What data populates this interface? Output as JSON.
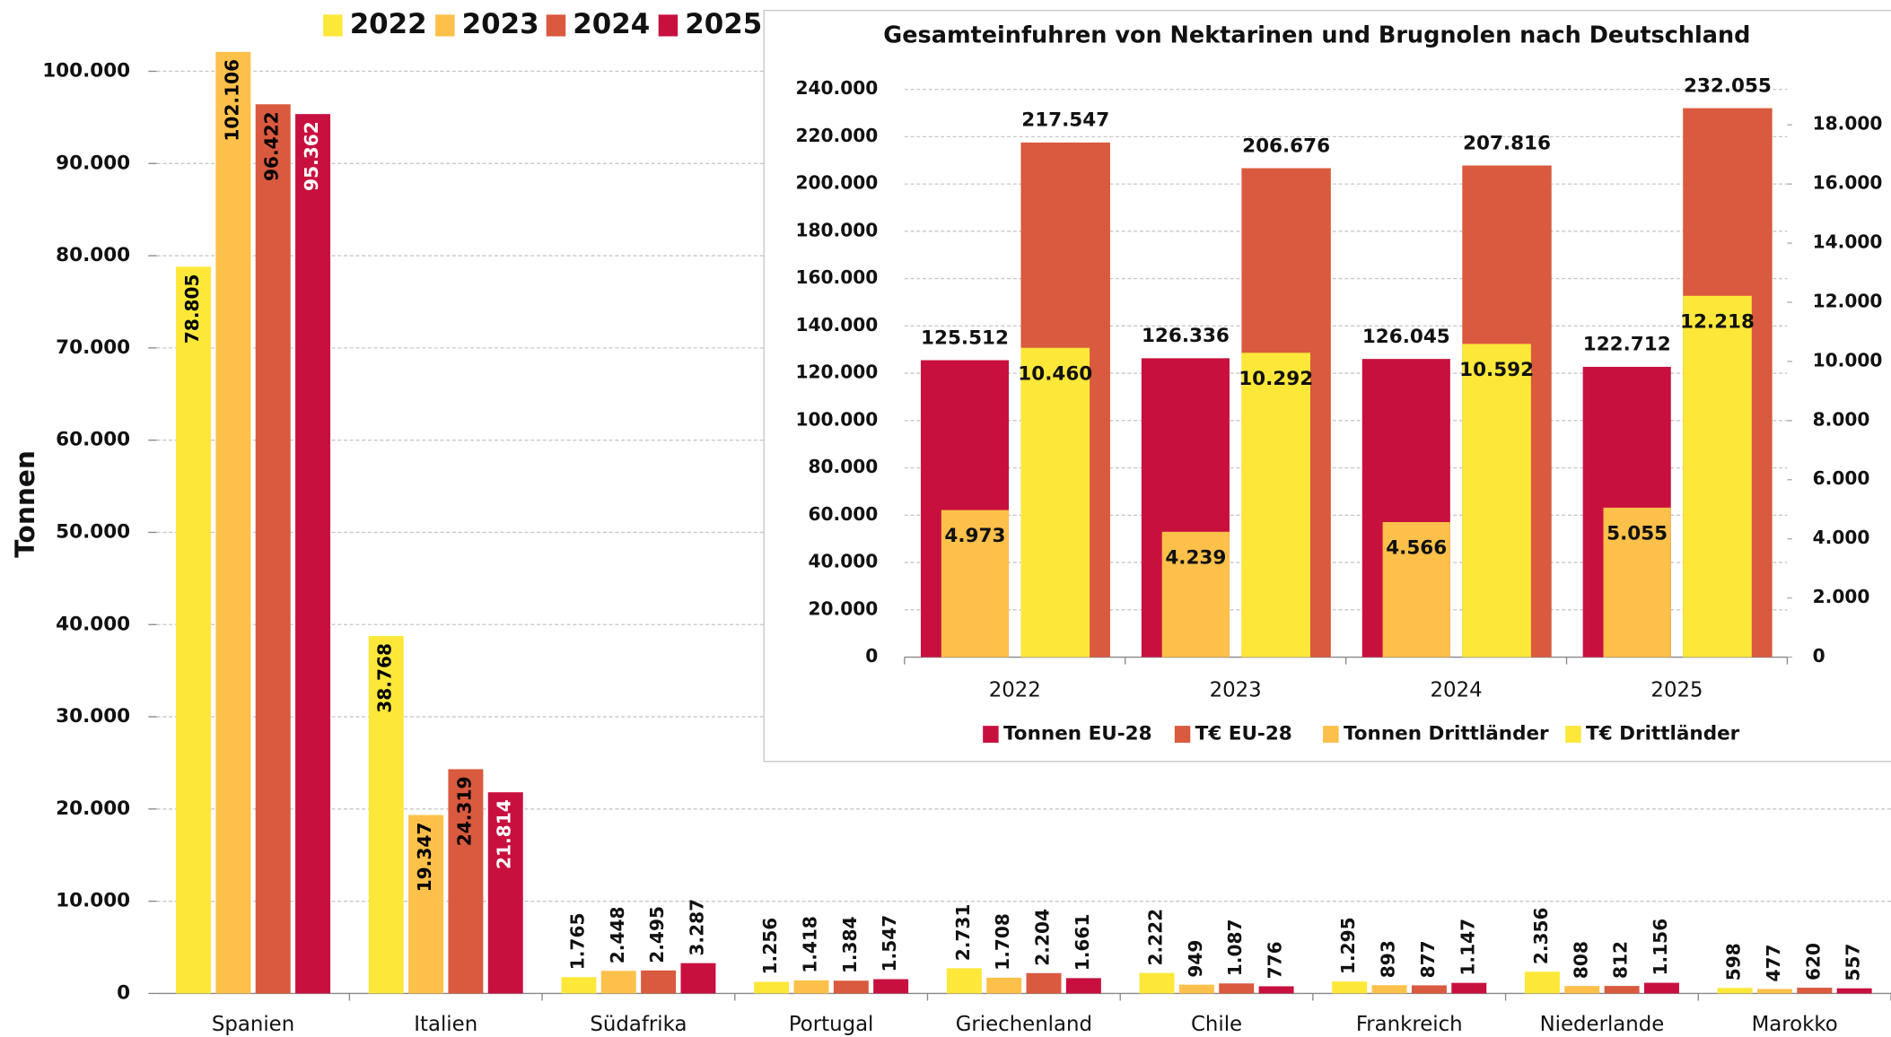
{
  "chart_data": [
    {
      "type": "bar",
      "ylabel": "Tonnen",
      "categories": [
        "Spanien",
        "Italien",
        "Südafrika",
        "Portugal",
        "Griechenland",
        "Chile",
        "Frankreich",
        "Niederlande",
        "Marokko"
      ],
      "series": [
        {
          "name": "2022",
          "color": "#fde83a",
          "label_color": "#000000",
          "values": [
            78805,
            38768,
            1765,
            1256,
            2731,
            2222,
            1295,
            2356,
            598
          ],
          "value_labels": [
            "78.805",
            "38.768",
            "1.765",
            "1.256",
            "2.731",
            "2.222",
            "1.295",
            "2.356",
            "598"
          ]
        },
        {
          "name": "2023",
          "color": "#fdc04a",
          "label_color": "#000000",
          "values": [
            102106,
            19347,
            2448,
            1418,
            1708,
            949,
            893,
            808,
            477
          ],
          "value_labels": [
            "102.106",
            "19.347",
            "2.448",
            "1.418",
            "1.708",
            "949",
            "893",
            "808",
            "477"
          ]
        },
        {
          "name": "2024",
          "color": "#d95a3e",
          "label_color": "#000000",
          "values": [
            96422,
            24319,
            2495,
            1384,
            2204,
            1087,
            877,
            812,
            620
          ],
          "value_labels": [
            "96.422",
            "24.319",
            "2.495",
            "1.384",
            "2.204",
            "1.087",
            "877",
            "812",
            "620"
          ]
        },
        {
          "name": "2025",
          "color": "#c8103f",
          "label_color": "#ffffff",
          "values": [
            95362,
            21814,
            3287,
            1547,
            1661,
            776,
            1147,
            1156,
            557
          ],
          "value_labels": [
            "95.362",
            "21.814",
            "3.287",
            "1.547",
            "1.661",
            "776",
            "1.147",
            "1.156",
            "557"
          ]
        }
      ],
      "ylim": [
        0,
        105000
      ],
      "yticks": [
        0,
        {
          "value": 10000,
          "label": "10.000"
        },
        {
          "value": 20000,
          "label": "20.000"
        },
        {
          "value": 30000,
          "label": "30.000"
        },
        {
          "value": 40000,
          "label": "40.000"
        },
        {
          "value": 50000,
          "label": "50.000"
        },
        {
          "value": 60000,
          "label": "60.000"
        },
        {
          "value": 70000,
          "label": "70.000"
        },
        {
          "value": 80000,
          "label": "80.000"
        },
        {
          "value": 90000,
          "label": "90.000"
        },
        {
          "value": 100000,
          "label": "100.000"
        }
      ],
      "grid": true,
      "legend": "top"
    },
    {
      "type": "bar",
      "title": "Gesamteinfuhren von Nektarinen und Brugnolen nach Deutschland",
      "categories": [
        "2022",
        "2023",
        "2024",
        "2025"
      ],
      "series": [
        {
          "name": "Tonnen EU-28",
          "color": "#c8103f",
          "axis": "y",
          "values": [
            125512,
            126336,
            126045,
            122712
          ],
          "value_labels": [
            "125.512",
            "126.336",
            "126.045",
            "122.712"
          ]
        },
        {
          "name": "T€ EU-28",
          "color": "#d95a3e",
          "axis": "y",
          "values": [
            217547,
            206676,
            207816,
            232055
          ],
          "value_labels": [
            "217.547",
            "206.676",
            "207.816",
            "232.055"
          ]
        },
        {
          "name": "Tonnen Drittländer",
          "color": "#fdc04a",
          "axis": "y2",
          "values": [
            4973,
            4239,
            4566,
            5055
          ],
          "value_labels": [
            "4.973",
            "4.239",
            "4.566",
            "5.055"
          ]
        },
        {
          "name": "T€ Drittländer",
          "color": "#fde83a",
          "axis": "y2",
          "values": [
            10460,
            10292,
            10592,
            12218
          ],
          "value_labels": [
            "10.460",
            "10.292",
            "10.592",
            "12.218"
          ]
        }
      ],
      "ylim": [
        0,
        240000
      ],
      "yticks": [
        0,
        {
          "value": 20000,
          "label": "20.000"
        },
        {
          "value": 40000,
          "label": "40.000"
        },
        {
          "value": 60000,
          "label": "60.000"
        },
        {
          "value": 80000,
          "label": "80.000"
        },
        {
          "value": 100000,
          "label": "100.000"
        },
        {
          "value": 120000,
          "label": "120.000"
        },
        {
          "value": 140000,
          "label": "140.000"
        },
        {
          "value": 160000,
          "label": "160.000"
        },
        {
          "value": 180000,
          "label": "180.000"
        },
        {
          "value": 200000,
          "label": "200.000"
        },
        {
          "value": 220000,
          "label": "220.000"
        },
        {
          "value": 240000,
          "label": "240.000"
        }
      ],
      "y2lim": [
        0,
        19200
      ],
      "y2ticks": [
        0,
        {
          "value": 2000,
          "label": "2.000"
        },
        {
          "value": 4000,
          "label": "4.000"
        },
        {
          "value": 6000,
          "label": "6.000"
        },
        {
          "value": 8000,
          "label": "8.000"
        },
        {
          "value": 10000,
          "label": "10.000"
        },
        {
          "value": 12000,
          "label": "12.000"
        },
        {
          "value": 14000,
          "label": "14.000"
        },
        {
          "value": 16000,
          "label": "16.000"
        },
        {
          "value": 18000,
          "label": "18.000"
        }
      ],
      "grid": true,
      "legend": "bottom"
    }
  ]
}
